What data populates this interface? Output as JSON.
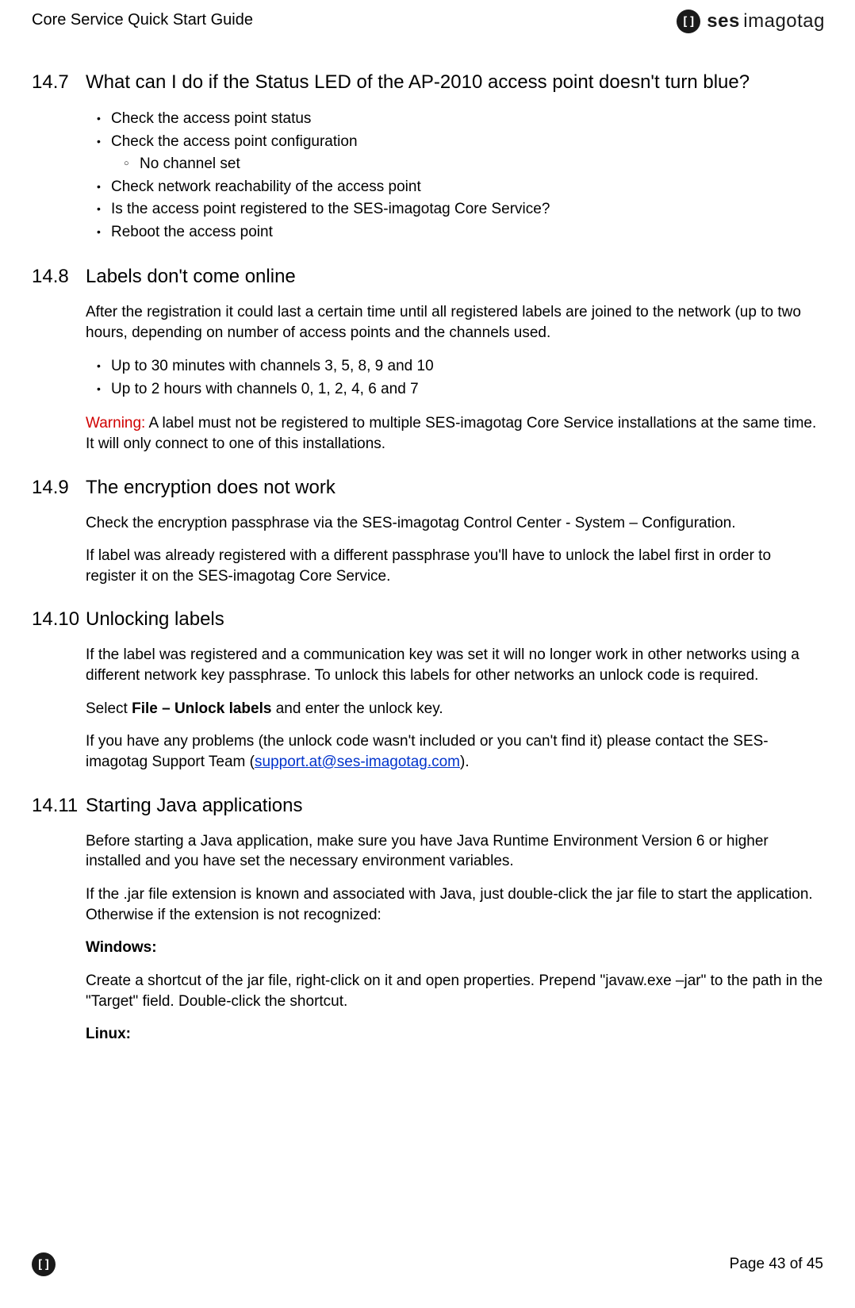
{
  "header": {
    "doc_title": "Core Service Quick Start Guide",
    "logo_glyph": "[]",
    "logo_ses": "ses",
    "logo_sub": "imagotag"
  },
  "sections": {
    "s147": {
      "num": "14.7",
      "title": "What can I do if the Status LED of the AP-2010 access point doesn't turn blue?",
      "bullets": [
        "Check the access point status",
        "Check the access point configuration",
        "Check network reachability of the access point",
        "Is the access point registered to the SES-imagotag Core Service?",
        "Reboot the access point"
      ],
      "sub_no_channel": "No channel set"
    },
    "s148": {
      "num": "14.8",
      "title": "Labels don't come online",
      "p1": "After the registration it could last a certain time until all registered labels are joined to the network (up to two hours, depending on number of access points and the channels used.",
      "bullets": [
        "Up to 30 minutes with channels 3, 5, 8, 9 and 10",
        "Up to 2 hours with channels 0, 1, 2, 4, 6 and 7"
      ],
      "warn_label": "Warning:",
      "warn_text": " A label must not be registered to multiple SES-imagotag Core Service installations at the same time. It will only connect to one of this installations."
    },
    "s149": {
      "num": "14.9",
      "title": "The encryption does not work",
      "p1": "Check the encryption passphrase via the SES-imagotag Control Center - System – Configuration.",
      "p2": "If label was already registered with a different passphrase you'll have to unlock the label first in order to register it on the SES-imagotag Core Service."
    },
    "s1410": {
      "num": "14.10",
      "title": "Unlocking labels",
      "p1": "If the label was registered and a communication key was set it will no longer work in other networks using a different network key passphrase. To unlock this labels for other networks an unlock code is required.",
      "p2_pre": "Select ",
      "p2_bold": "File – Unlock labels",
      "p2_post": " and enter the unlock key.",
      "p3_pre": "If you have any problems (the unlock code wasn't included or you can't find it) please contact the SES-imagotag Support Team (",
      "p3_link": "support.at@ses-imagotag.com",
      "p3_post": ")."
    },
    "s1411": {
      "num": "14.11",
      "title": "Starting Java applications",
      "p1": "Before starting a Java application, make sure you have Java Runtime Environment Version 6 or higher installed and you have set the necessary environment variables.",
      "p2": "If the .jar file extension is known and associated with Java, just double-click the jar file to start the application. Otherwise if the extension is not recognized:",
      "windows_h": "Windows:",
      "windows_p": "Create a shortcut of the jar file, right-click on it and open properties. Prepend \"javaw.exe –jar\" to the path in the \"Target\" field. Double-click the shortcut.",
      "linux_h": "Linux:"
    }
  },
  "footer": {
    "glyph": "[]",
    "page": "Page 43 of 45"
  }
}
